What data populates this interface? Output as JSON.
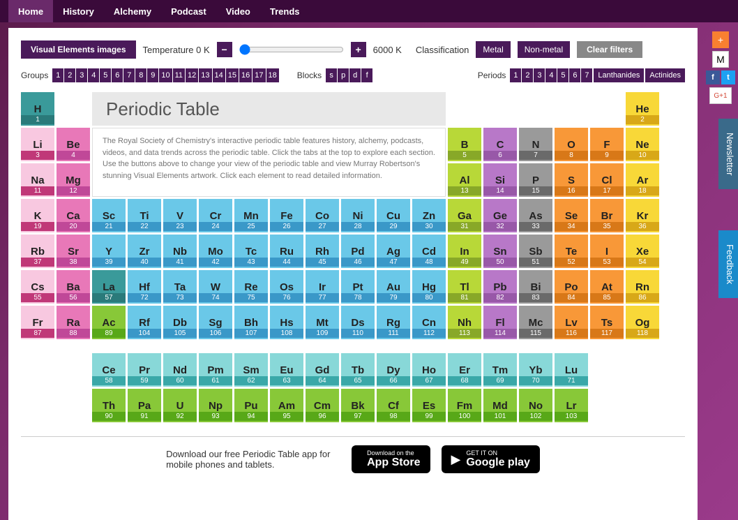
{
  "nav": [
    "Home",
    "History",
    "Alchemy",
    "Podcast",
    "Video",
    "Trends"
  ],
  "nav_active": 0,
  "toolbar": {
    "visual_label": "Visual Elements images",
    "temp_label": "Temperature 0 K",
    "temp_max": "6000 K",
    "class_label": "Classification",
    "metal": "Metal",
    "nonmetal": "Non-metal",
    "clear": "Clear filters",
    "minus": "−",
    "plus": "+"
  },
  "filters": {
    "groups_label": "Groups",
    "groups": [
      "1",
      "2",
      "3",
      "4",
      "5",
      "6",
      "7",
      "8",
      "9",
      "10",
      "11",
      "12",
      "13",
      "14",
      "15",
      "16",
      "17",
      "18"
    ],
    "blocks_label": "Blocks",
    "blocks": [
      "s",
      "p",
      "d",
      "f"
    ],
    "periods_label": "Periods",
    "periods": [
      "1",
      "2",
      "3",
      "4",
      "5",
      "6",
      "7"
    ],
    "lanth": "Lanthanides",
    "act": "Actinides"
  },
  "title": "Periodic Table",
  "description": "The Royal Society of Chemistry's interactive periodic table features history, alchemy, podcasts, videos, and data trends across the periodic table. Click the tabs at the top to explore each section. Use the buttons above to change your view of the periodic table and view Murray Robertson's stunning Visual Elements artwork. Click each element to read detailed information.",
  "colors": {
    "teal": "#3a9a9a",
    "teal_d": "#2a7a7a",
    "pinkL": "#f8c8e0",
    "pinkL_d": "#d888c0",
    "pink": "#e878b8",
    "pink_d": "#c04898",
    "mag": "#c03878",
    "mag_d": "#a02858",
    "ltblue": "#6ac8e8",
    "ltblue_d": "#3a98c8",
    "lime": "#b8d838",
    "lime_d": "#88a828",
    "purp": "#b878c8",
    "purp_d": "#9858a8",
    "gray": "#9a9a9a",
    "gray_d": "#6a6a6a",
    "orange": "#f89838",
    "orange_d": "#d87818",
    "yel": "#f8d838",
    "yel_d": "#d8a818",
    "cyan": "#88d8d8",
    "cyan_d": "#3aa8a8",
    "green": "#88c838",
    "green_d": "#58a818"
  },
  "elements": [
    {
      "n": 1,
      "s": "H",
      "r": 1,
      "c": 1,
      "k": "teal"
    },
    {
      "n": 2,
      "s": "He",
      "r": 1,
      "c": 18,
      "k": "yel"
    },
    {
      "n": 3,
      "s": "Li",
      "r": 2,
      "c": 1,
      "k": "pinkL"
    },
    {
      "n": 4,
      "s": "Be",
      "r": 2,
      "c": 2,
      "k": "pink"
    },
    {
      "n": 5,
      "s": "B",
      "r": 2,
      "c": 13,
      "k": "lime"
    },
    {
      "n": 6,
      "s": "C",
      "r": 2,
      "c": 14,
      "k": "purp"
    },
    {
      "n": 7,
      "s": "N",
      "r": 2,
      "c": 15,
      "k": "gray"
    },
    {
      "n": 8,
      "s": "O",
      "r": 2,
      "c": 16,
      "k": "orange"
    },
    {
      "n": 9,
      "s": "F",
      "r": 2,
      "c": 17,
      "k": "orange"
    },
    {
      "n": 10,
      "s": "Ne",
      "r": 2,
      "c": 18,
      "k": "yel"
    },
    {
      "n": 11,
      "s": "Na",
      "r": 3,
      "c": 1,
      "k": "pinkL"
    },
    {
      "n": 12,
      "s": "Mg",
      "r": 3,
      "c": 2,
      "k": "pink"
    },
    {
      "n": 13,
      "s": "Al",
      "r": 3,
      "c": 13,
      "k": "lime"
    },
    {
      "n": 14,
      "s": "Si",
      "r": 3,
      "c": 14,
      "k": "purp"
    },
    {
      "n": 15,
      "s": "P",
      "r": 3,
      "c": 15,
      "k": "gray"
    },
    {
      "n": 16,
      "s": "S",
      "r": 3,
      "c": 16,
      "k": "orange"
    },
    {
      "n": 17,
      "s": "Cl",
      "r": 3,
      "c": 17,
      "k": "orange"
    },
    {
      "n": 18,
      "s": "Ar",
      "r": 3,
      "c": 18,
      "k": "yel"
    },
    {
      "n": 19,
      "s": "K",
      "r": 4,
      "c": 1,
      "k": "pinkL"
    },
    {
      "n": 20,
      "s": "Ca",
      "r": 4,
      "c": 2,
      "k": "pink"
    },
    {
      "n": 21,
      "s": "Sc",
      "r": 4,
      "c": 3,
      "k": "ltblue"
    },
    {
      "n": 22,
      "s": "Ti",
      "r": 4,
      "c": 4,
      "k": "ltblue"
    },
    {
      "n": 23,
      "s": "V",
      "r": 4,
      "c": 5,
      "k": "ltblue"
    },
    {
      "n": 24,
      "s": "Cr",
      "r": 4,
      "c": 6,
      "k": "ltblue"
    },
    {
      "n": 25,
      "s": "Mn",
      "r": 4,
      "c": 7,
      "k": "ltblue"
    },
    {
      "n": 26,
      "s": "Fe",
      "r": 4,
      "c": 8,
      "k": "ltblue"
    },
    {
      "n": 27,
      "s": "Co",
      "r": 4,
      "c": 9,
      "k": "ltblue"
    },
    {
      "n": 28,
      "s": "Ni",
      "r": 4,
      "c": 10,
      "k": "ltblue"
    },
    {
      "n": 29,
      "s": "Cu",
      "r": 4,
      "c": 11,
      "k": "ltblue"
    },
    {
      "n": 30,
      "s": "Zn",
      "r": 4,
      "c": 12,
      "k": "ltblue"
    },
    {
      "n": 31,
      "s": "Ga",
      "r": 4,
      "c": 13,
      "k": "lime"
    },
    {
      "n": 32,
      "s": "Ge",
      "r": 4,
      "c": 14,
      "k": "purp"
    },
    {
      "n": 33,
      "s": "As",
      "r": 4,
      "c": 15,
      "k": "gray"
    },
    {
      "n": 34,
      "s": "Se",
      "r": 4,
      "c": 16,
      "k": "orange"
    },
    {
      "n": 35,
      "s": "Br",
      "r": 4,
      "c": 17,
      "k": "orange"
    },
    {
      "n": 36,
      "s": "Kr",
      "r": 4,
      "c": 18,
      "k": "yel"
    },
    {
      "n": 37,
      "s": "Rb",
      "r": 5,
      "c": 1,
      "k": "pinkL"
    },
    {
      "n": 38,
      "s": "Sr",
      "r": 5,
      "c": 2,
      "k": "pink"
    },
    {
      "n": 39,
      "s": "Y",
      "r": 5,
      "c": 3,
      "k": "ltblue"
    },
    {
      "n": 40,
      "s": "Zr",
      "r": 5,
      "c": 4,
      "k": "ltblue"
    },
    {
      "n": 41,
      "s": "Nb",
      "r": 5,
      "c": 5,
      "k": "ltblue"
    },
    {
      "n": 42,
      "s": "Mo",
      "r": 5,
      "c": 6,
      "k": "ltblue"
    },
    {
      "n": 43,
      "s": "Tc",
      "r": 5,
      "c": 7,
      "k": "ltblue"
    },
    {
      "n": 44,
      "s": "Ru",
      "r": 5,
      "c": 8,
      "k": "ltblue"
    },
    {
      "n": 45,
      "s": "Rh",
      "r": 5,
      "c": 9,
      "k": "ltblue"
    },
    {
      "n": 46,
      "s": "Pd",
      "r": 5,
      "c": 10,
      "k": "ltblue"
    },
    {
      "n": 47,
      "s": "Ag",
      "r": 5,
      "c": 11,
      "k": "ltblue"
    },
    {
      "n": 48,
      "s": "Cd",
      "r": 5,
      "c": 12,
      "k": "ltblue"
    },
    {
      "n": 49,
      "s": "In",
      "r": 5,
      "c": 13,
      "k": "lime"
    },
    {
      "n": 50,
      "s": "Sn",
      "r": 5,
      "c": 14,
      "k": "purp"
    },
    {
      "n": 51,
      "s": "Sb",
      "r": 5,
      "c": 15,
      "k": "gray"
    },
    {
      "n": 52,
      "s": "Te",
      "r": 5,
      "c": 16,
      "k": "orange"
    },
    {
      "n": 53,
      "s": "I",
      "r": 5,
      "c": 17,
      "k": "orange"
    },
    {
      "n": 54,
      "s": "Xe",
      "r": 5,
      "c": 18,
      "k": "yel"
    },
    {
      "n": 55,
      "s": "Cs",
      "r": 6,
      "c": 1,
      "k": "pinkL"
    },
    {
      "n": 56,
      "s": "Ba",
      "r": 6,
      "c": 2,
      "k": "pink"
    },
    {
      "n": 57,
      "s": "La",
      "r": 6,
      "c": 3,
      "k": "teal"
    },
    {
      "n": 72,
      "s": "Hf",
      "r": 6,
      "c": 4,
      "k": "ltblue"
    },
    {
      "n": 73,
      "s": "Ta",
      "r": 6,
      "c": 5,
      "k": "ltblue"
    },
    {
      "n": 74,
      "s": "W",
      "r": 6,
      "c": 6,
      "k": "ltblue"
    },
    {
      "n": 75,
      "s": "Re",
      "r": 6,
      "c": 7,
      "k": "ltblue"
    },
    {
      "n": 76,
      "s": "Os",
      "r": 6,
      "c": 8,
      "k": "ltblue"
    },
    {
      "n": 77,
      "s": "Ir",
      "r": 6,
      "c": 9,
      "k": "ltblue"
    },
    {
      "n": 78,
      "s": "Pt",
      "r": 6,
      "c": 10,
      "k": "ltblue"
    },
    {
      "n": 79,
      "s": "Au",
      "r": 6,
      "c": 11,
      "k": "ltblue"
    },
    {
      "n": 80,
      "s": "Hg",
      "r": 6,
      "c": 12,
      "k": "ltblue"
    },
    {
      "n": 81,
      "s": "Tl",
      "r": 6,
      "c": 13,
      "k": "lime"
    },
    {
      "n": 82,
      "s": "Pb",
      "r": 6,
      "c": 14,
      "k": "purp"
    },
    {
      "n": 83,
      "s": "Bi",
      "r": 6,
      "c": 15,
      "k": "gray"
    },
    {
      "n": 84,
      "s": "Po",
      "r": 6,
      "c": 16,
      "k": "orange"
    },
    {
      "n": 85,
      "s": "At",
      "r": 6,
      "c": 17,
      "k": "orange"
    },
    {
      "n": 86,
      "s": "Rn",
      "r": 6,
      "c": 18,
      "k": "yel"
    },
    {
      "n": 87,
      "s": "Fr",
      "r": 7,
      "c": 1,
      "k": "pinkL"
    },
    {
      "n": 88,
      "s": "Ra",
      "r": 7,
      "c": 2,
      "k": "pink"
    },
    {
      "n": 89,
      "s": "Ac",
      "r": 7,
      "c": 3,
      "k": "green"
    },
    {
      "n": 104,
      "s": "Rf",
      "r": 7,
      "c": 4,
      "k": "ltblue"
    },
    {
      "n": 105,
      "s": "Db",
      "r": 7,
      "c": 5,
      "k": "ltblue"
    },
    {
      "n": 106,
      "s": "Sg",
      "r": 7,
      "c": 6,
      "k": "ltblue"
    },
    {
      "n": 107,
      "s": "Bh",
      "r": 7,
      "c": 7,
      "k": "ltblue"
    },
    {
      "n": 108,
      "s": "Hs",
      "r": 7,
      "c": 8,
      "k": "ltblue"
    },
    {
      "n": 109,
      "s": "Mt",
      "r": 7,
      "c": 9,
      "k": "ltblue"
    },
    {
      "n": 110,
      "s": "Ds",
      "r": 7,
      "c": 10,
      "k": "ltblue"
    },
    {
      "n": 111,
      "s": "Rg",
      "r": 7,
      "c": 11,
      "k": "ltblue"
    },
    {
      "n": 112,
      "s": "Cn",
      "r": 7,
      "c": 12,
      "k": "ltblue"
    },
    {
      "n": 113,
      "s": "Nh",
      "r": 7,
      "c": 13,
      "k": "lime"
    },
    {
      "n": 114,
      "s": "Fl",
      "r": 7,
      "c": 14,
      "k": "purp"
    },
    {
      "n": 115,
      "s": "Mc",
      "r": 7,
      "c": 15,
      "k": "gray"
    },
    {
      "n": 116,
      "s": "Lv",
      "r": 7,
      "c": 16,
      "k": "orange"
    },
    {
      "n": 117,
      "s": "Ts",
      "r": 7,
      "c": 17,
      "k": "orange"
    },
    {
      "n": 118,
      "s": "Og",
      "r": 7,
      "c": 18,
      "k": "yel"
    }
  ],
  "lanthanides": [
    {
      "n": 58,
      "s": "Ce"
    },
    {
      "n": 59,
      "s": "Pr"
    },
    {
      "n": 60,
      "s": "Nd"
    },
    {
      "n": 61,
      "s": "Pm"
    },
    {
      "n": 62,
      "s": "Sm"
    },
    {
      "n": 63,
      "s": "Eu"
    },
    {
      "n": 64,
      "s": "Gd"
    },
    {
      "n": 65,
      "s": "Tb"
    },
    {
      "n": 66,
      "s": "Dy"
    },
    {
      "n": 67,
      "s": "Ho"
    },
    {
      "n": 68,
      "s": "Er"
    },
    {
      "n": 69,
      "s": "Tm"
    },
    {
      "n": 70,
      "s": "Yb"
    },
    {
      "n": 71,
      "s": "Lu"
    }
  ],
  "actinides": [
    {
      "n": 90,
      "s": "Th"
    },
    {
      "n": 91,
      "s": "Pa"
    },
    {
      "n": 92,
      "s": "U"
    },
    {
      "n": 93,
      "s": "Np"
    },
    {
      "n": 94,
      "s": "Pu"
    },
    {
      "n": 95,
      "s": "Am"
    },
    {
      "n": 96,
      "s": "Cm"
    },
    {
      "n": 97,
      "s": "Bk"
    },
    {
      "n": 98,
      "s": "Cf"
    },
    {
      "n": 99,
      "s": "Es"
    },
    {
      "n": 100,
      "s": "Fm"
    },
    {
      "n": 101,
      "s": "Md"
    },
    {
      "n": 102,
      "s": "No"
    },
    {
      "n": 103,
      "s": "Lr"
    }
  ],
  "footer": {
    "text": "Download our free Periodic Table app for mobile phones and tablets.",
    "apple_small": "Download on the",
    "apple_big": "App Store",
    "google_small": "GET IT ON",
    "google_big": "Google play"
  },
  "side": {
    "plus": "+",
    "mail": "M",
    "fb": "f",
    "tw": "t",
    "g1": "G+1",
    "newsletter": "Newsletter",
    "feedback": "Feedback"
  }
}
